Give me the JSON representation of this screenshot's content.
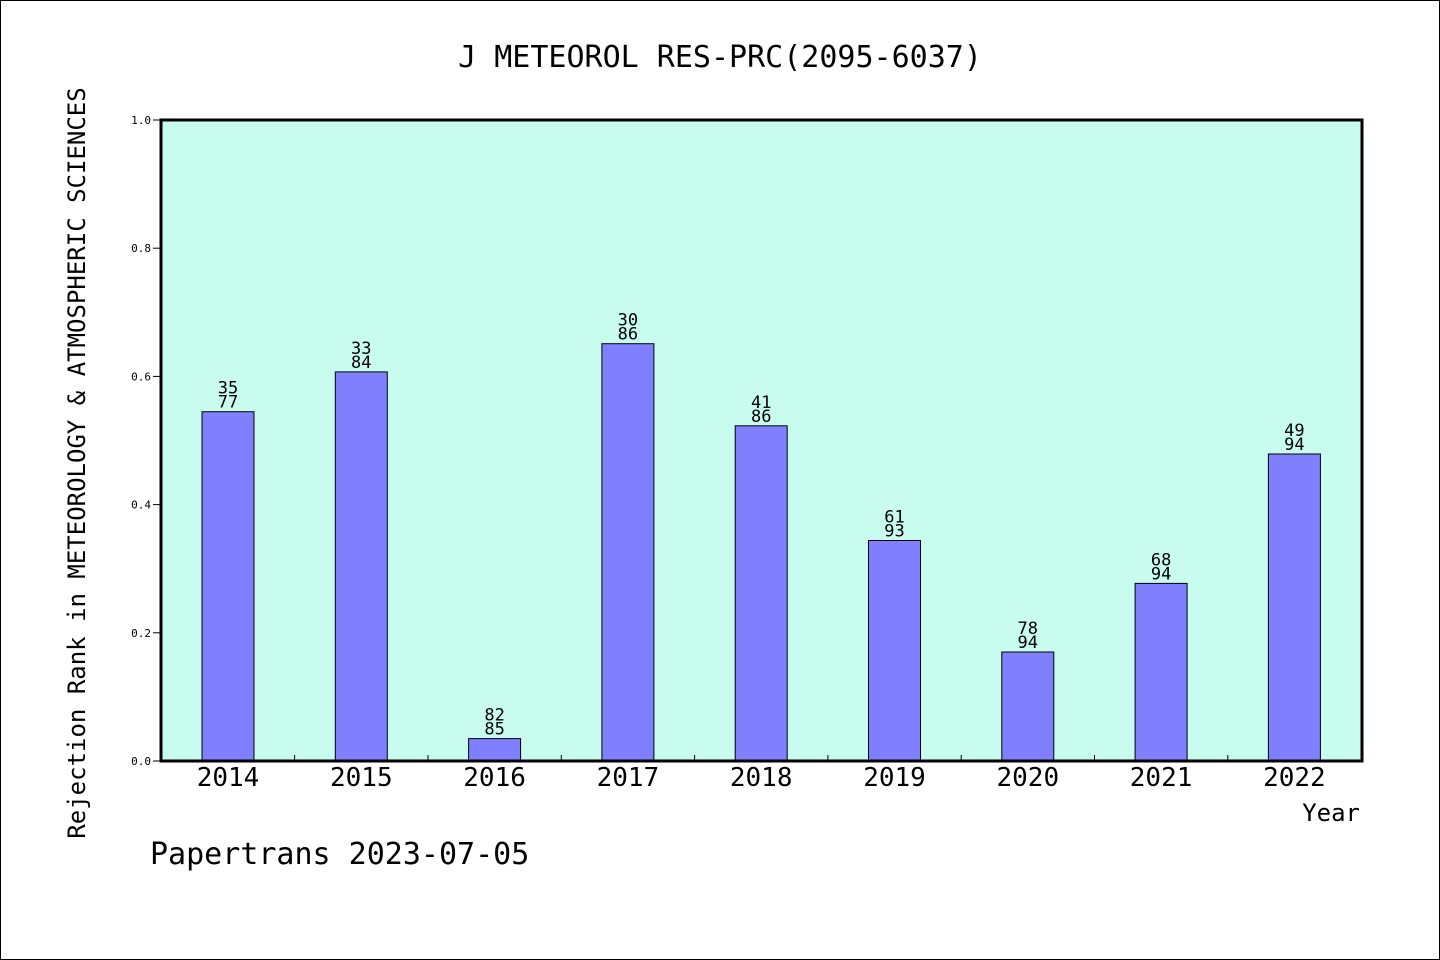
{
  "chart_data": {
    "type": "bar",
    "title": "J METEOROL RES-PRC(2095-6037)",
    "xlabel": "Year",
    "ylabel": "Rejection Rank in METEOROLOGY & ATMOSPHERIC SCIENCES",
    "footer": "Papertrans 2023-07-05",
    "ylim": [
      0,
      1.0
    ],
    "yticks": [
      "0.0",
      "0.2",
      "0.4",
      "0.6",
      "0.8",
      "1.0"
    ],
    "categories": [
      "2014",
      "2015",
      "2016",
      "2017",
      "2018",
      "2019",
      "2020",
      "2021",
      "2022"
    ],
    "values": [
      0.545,
      0.607,
      0.035,
      0.651,
      0.523,
      0.344,
      0.17,
      0.277,
      0.479
    ],
    "labels_top": [
      "35",
      "33",
      "82",
      "30",
      "41",
      "61",
      "78",
      "68",
      "49"
    ],
    "labels_bottom": [
      "77",
      "84",
      "85",
      "86",
      "86",
      "93",
      "94",
      "94",
      "94"
    ],
    "grid": false,
    "colors": {
      "plot_background": "#c8fcee",
      "bar_fill": "#8080ff",
      "bar_stroke": "#000000"
    }
  }
}
